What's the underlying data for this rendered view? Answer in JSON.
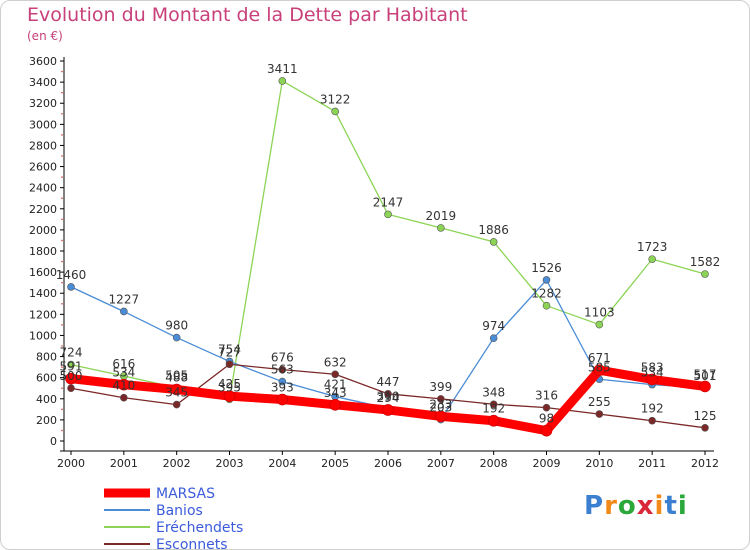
{
  "chart_data": {
    "type": "line",
    "title": "Evolution du Montant de la Dette par Habitant",
    "subtitle": "(en €)",
    "xlabel": "",
    "ylabel": "",
    "categories": [
      "2000",
      "2001",
      "2002",
      "2003",
      "2004",
      "2005",
      "2006",
      "2007",
      "2008",
      "2009",
      "2010",
      "2011",
      "2012"
    ],
    "yticks": [
      "0",
      "200",
      "400",
      "600",
      "800",
      "1000",
      "1200",
      "1400",
      "1600",
      "1800",
      "2000",
      "2200",
      "2400",
      "2600",
      "2800",
      "3000",
      "3200",
      "3400",
      "3600"
    ],
    "ylim": [
      0,
      3600
    ],
    "grid": false,
    "legend_position": "bottom-left",
    "series": [
      {
        "name": "MARSAS",
        "color": "#ff0000",
        "values": [
          591,
          534,
          488,
          425,
          393,
          343,
          294,
          233,
          192,
          98,
          671,
          583,
          517
        ]
      },
      {
        "name": "Banios",
        "color": "#4a8cd6",
        "values": [
          1460,
          1227,
          980,
          754,
          563,
          421,
          310,
          203,
          974,
          1526,
          585,
          534,
          501
        ]
      },
      {
        "name": "Eréchendets",
        "color": "#8cd455",
        "values": [
          724,
          616,
          505,
          395,
          3411,
          3122,
          2147,
          2019,
          1886,
          1282,
          1103,
          1723,
          1582
        ]
      },
      {
        "name": "Esconnets",
        "color": "#7a2828",
        "values": [
          500,
          410,
          345,
          727,
          676,
          632,
          447,
          399,
          348,
          316,
          255,
          192,
          125
        ]
      }
    ]
  },
  "logo": {
    "text": "Proxiti",
    "colors": [
      "#3a7fd0",
      "#f28a1a",
      "#2aa83a",
      "#d8283a",
      "#f28a1a",
      "#3a7fd0",
      "#2aa83a"
    ]
  }
}
